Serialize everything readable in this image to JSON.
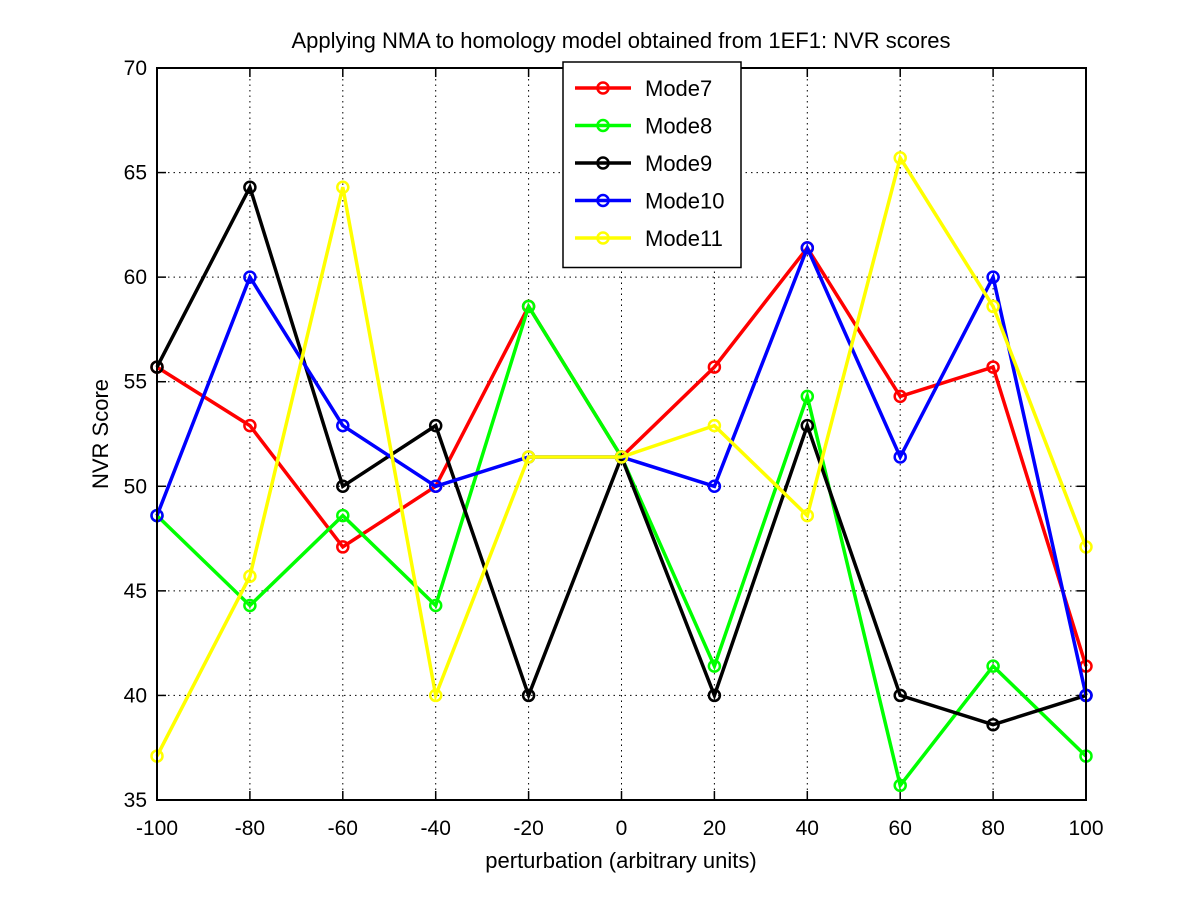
{
  "chart_data": {
    "type": "line",
    "title": "Applying NMA to homology model obtained from 1EF1: NVR scores",
    "xlabel": "perturbation (arbitrary units)",
    "ylabel": "NVR Score",
    "x": [
      -100,
      -80,
      -60,
      -40,
      -20,
      0,
      20,
      40,
      60,
      80,
      100
    ],
    "xlim": [
      -100,
      100
    ],
    "ylim": [
      35,
      70
    ],
    "xticks": [
      -100,
      -80,
      -60,
      -40,
      -20,
      0,
      20,
      40,
      60,
      80,
      100
    ],
    "yticks": [
      35,
      40,
      45,
      50,
      55,
      60,
      65,
      70
    ],
    "grid": true,
    "legend_position": "top-center",
    "series": [
      {
        "name": "Mode7",
        "color": "#ff0000",
        "values": [
          55.7,
          52.9,
          47.1,
          50.0,
          58.6,
          51.4,
          55.7,
          61.4,
          54.3,
          55.7,
          41.4
        ]
      },
      {
        "name": "Mode8",
        "color": "#00ff00",
        "values": [
          48.6,
          44.3,
          48.6,
          44.3,
          58.6,
          51.4,
          41.4,
          54.3,
          35.7,
          41.4,
          37.1
        ]
      },
      {
        "name": "Mode9",
        "color": "#000000",
        "values": [
          55.7,
          64.3,
          50.0,
          52.9,
          40.0,
          51.4,
          40.0,
          52.9,
          40.0,
          38.6,
          40.0
        ]
      },
      {
        "name": "Mode10",
        "color": "#0000ff",
        "values": [
          48.6,
          60.0,
          52.9,
          50.0,
          51.4,
          51.4,
          50.0,
          61.4,
          51.4,
          60.0,
          40.0
        ]
      },
      {
        "name": "Mode11",
        "color": "#ffff00",
        "values": [
          37.1,
          45.7,
          64.3,
          40.0,
          51.4,
          51.4,
          52.9,
          48.6,
          65.7,
          58.6,
          47.1
        ]
      }
    ]
  }
}
